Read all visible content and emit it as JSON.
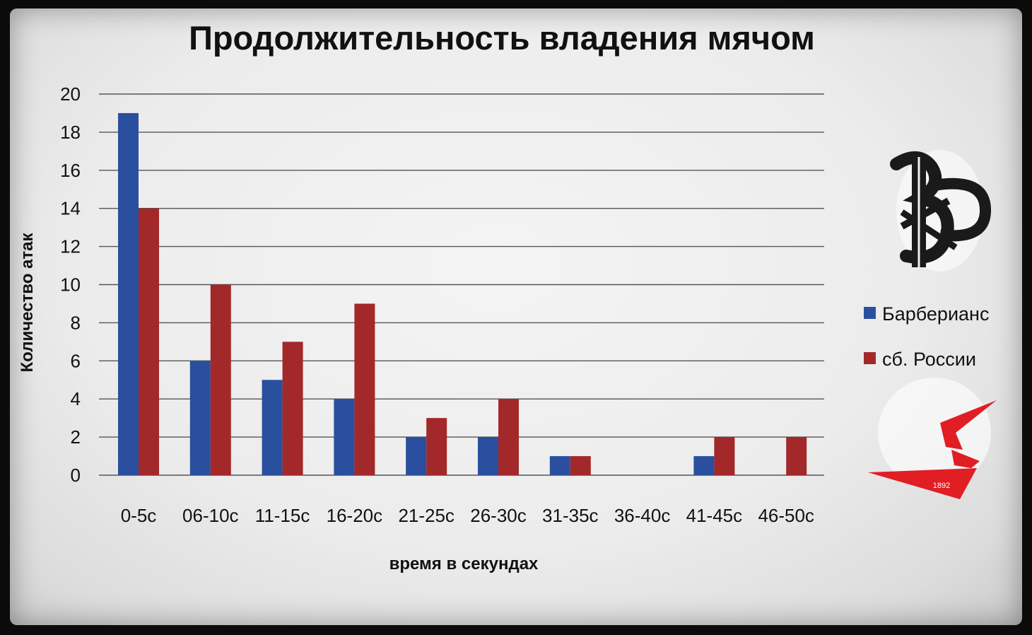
{
  "chart_data": {
    "type": "bar",
    "title": "Продолжительность владения мячом",
    "xlabel": "время в секундах",
    "ylabel": "Количество атак",
    "ylim": [
      0,
      20
    ],
    "yticks": [
      "0",
      "2",
      "4",
      "6",
      "8",
      "10",
      "12",
      "14",
      "16",
      "18",
      "20"
    ],
    "grid": true,
    "legend_position": "right",
    "categories": [
      "0-5с",
      "06-10с",
      "11-15с",
      "16-20с",
      "21-25с",
      "26-30с",
      "31-35с",
      "36-40с",
      "41-45с",
      "46-50с"
    ],
    "series": [
      {
        "name": "Барберианс",
        "color": "#2a4f9e",
        "values": [
          19,
          6,
          5,
          4,
          2,
          2,
          1,
          0,
          1,
          0
        ]
      },
      {
        "name": "сб. России",
        "color": "#a3282a",
        "values": [
          14,
          10,
          7,
          9,
          3,
          4,
          1,
          0,
          2,
          2
        ]
      }
    ]
  },
  "logos": {
    "top": {
      "name": "barbarians-monogram-logo",
      "text": "BFC"
    },
    "bottom": {
      "name": "russia-rugby-logo",
      "text": "1892"
    }
  }
}
